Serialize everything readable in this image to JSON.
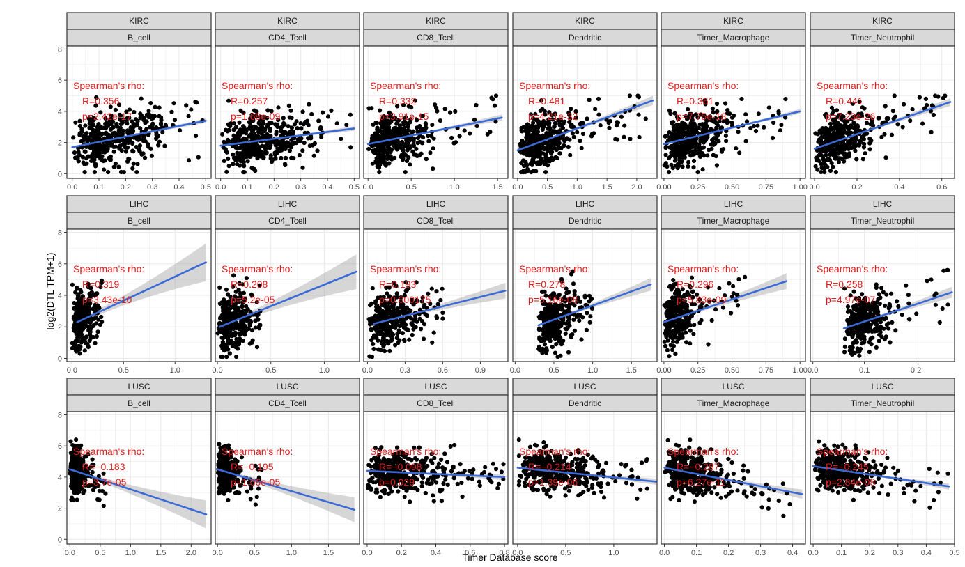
{
  "chart_data": {
    "type": "scatter",
    "xlabel": "Timer Database score",
    "ylabel": "log2(DTL TPM+1)",
    "stat_title": "Spearman's rho:",
    "cell_types": [
      "B_cell",
      "CD4_Tcell",
      "CD8_Tcell",
      "Dendritic",
      "Timer_Macrophage",
      "Timer_Neutrophil"
    ],
    "y_ticks": [
      [
        "0",
        "2",
        "4",
        "6",
        "8"
      ],
      [
        "0",
        "2",
        "4",
        "6",
        "8"
      ],
      [
        "0",
        "2",
        "4",
        "6",
        "8"
      ]
    ],
    "rows": [
      {
        "cancer": "KIRC",
        "panels": [
          {
            "cell": "B_cell",
            "R": "R=0.356",
            "p": "p=2.42e-17",
            "x_ticks": [
              "0.0",
              "0.1",
              "0.2",
              "0.3",
              "0.4",
              "0.5"
            ],
            "xlim": [
              -0.02,
              0.52
            ],
            "ylim": [
              -0.3,
              8.2
            ],
            "fit": [
              [
                0.0,
                1.7
              ],
              [
                0.5,
                3.4
              ]
            ],
            "band": 0.15,
            "ypts": {
              "center": 2.0,
              "spread": 1.1,
              "min": 0.1,
              "max": 5.3
            },
            "xpts": {
              "max": 0.5,
              "peak": 0.15
            },
            "n": 420
          },
          {
            "cell": "CD4_Tcell",
            "R": "R=0.257",
            "p": "p=1.68e-09",
            "x_ticks": [
              "0.0",
              "0.1",
              "0.2",
              "0.3",
              "0.4",
              "0.5"
            ],
            "xlim": [
              -0.02,
              0.52
            ],
            "ylim": [
              -0.3,
              8.2
            ],
            "fit": [
              [
                0.0,
                1.8
              ],
              [
                0.5,
                2.9
              ]
            ],
            "band": 0.15,
            "ypts": {
              "center": 2.0,
              "spread": 1.0,
              "min": 0.1,
              "max": 5.0
            },
            "xpts": {
              "max": 0.5,
              "peak": 0.15
            },
            "n": 420
          },
          {
            "cell": "CD8_Tcell",
            "R": "R=0.332",
            "p": "p=3.91e-15",
            "x_ticks": [
              "0.0",
              "0.5",
              "1.0",
              "1.5"
            ],
            "xlim": [
              -0.05,
              1.62
            ],
            "ylim": [
              -0.3,
              8.2
            ],
            "fit": [
              [
                0.0,
                1.9
              ],
              [
                1.55,
                3.6
              ]
            ],
            "band": 0.2,
            "ypts": {
              "center": 2.0,
              "spread": 1.0,
              "min": 0.1,
              "max": 5.0
            },
            "xpts": {
              "max": 1.55,
              "peak": 0.3
            },
            "n": 420
          },
          {
            "cell": "Dendritic",
            "R": "R=0.481",
            "p": "p=4.21e-32",
            "x_ticks": [
              "0.0",
              "0.5",
              "1.0",
              "1.5",
              "2.0"
            ],
            "xlim": [
              -0.08,
              2.34
            ],
            "ylim": [
              -0.3,
              8.2
            ],
            "fit": [
              [
                0.0,
                1.5
              ],
              [
                2.27,
                4.7
              ]
            ],
            "band": 0.3,
            "ypts": {
              "center": 2.0,
              "spread": 1.0,
              "min": 0.1,
              "max": 5.0
            },
            "xpts": {
              "max": 2.2,
              "peak": 0.4
            },
            "n": 420
          },
          {
            "cell": "Timer_Macrophage",
            "R": "R=0.361",
            "p": "p=7.75e-18",
            "x_ticks": [
              "0.00",
              "0.25",
              "0.50",
              "0.75",
              "1.00"
            ],
            "xlim": [
              -0.02,
              1.04
            ],
            "ylim": [
              -0.3,
              8.2
            ],
            "fit": [
              [
                0.0,
                1.9
              ],
              [
                1.0,
                4.0
              ]
            ],
            "band": 0.15,
            "ypts": {
              "center": 2.0,
              "spread": 1.0,
              "min": 0.1,
              "max": 4.8
            },
            "xpts": {
              "max": 0.9,
              "peak": 0.2
            },
            "n": 420
          },
          {
            "cell": "Timer_Neutrophil",
            "R": "R=0.441",
            "p": "p=7.23e-26",
            "x_ticks": [
              "0.0",
              "0.2",
              "0.4",
              "0.6"
            ],
            "xlim": [
              -0.02,
              0.66
            ],
            "ylim": [
              -0.3,
              8.2
            ],
            "fit": [
              [
                0.0,
                1.6
              ],
              [
                0.64,
                4.6
              ]
            ],
            "band": 0.25,
            "ypts": {
              "center": 2.0,
              "spread": 1.0,
              "min": 0.1,
              "max": 5.0
            },
            "xpts": {
              "max": 0.62,
              "peak": 0.12
            },
            "n": 420
          }
        ]
      },
      {
        "cancer": "LIHC",
        "panels": [
          {
            "cell": "B_cell",
            "R": "R=0.319",
            "p": "p=3.43e-10",
            "x_ticks": [
              "0.0",
              "0.5",
              "1.0"
            ],
            "xlim": [
              -0.05,
              1.35
            ],
            "ylim": [
              -0.2,
              8.2
            ],
            "fit": [
              [
                0.05,
                2.3
              ],
              [
                1.3,
                6.1
              ]
            ],
            "band": 1.2,
            "ypts": {
              "center": 2.5,
              "spread": 1.1,
              "min": 0.1,
              "max": 5.8
            },
            "xpts": {
              "max": 0.3,
              "peak": 0.1
            },
            "n": 330
          },
          {
            "cell": "CD4_Tcell",
            "R": "R=0.208",
            "p": "p=5.2e-05",
            "x_ticks": [
              "0.0",
              "0.5",
              "1.0"
            ],
            "xlim": [
              -0.02,
              1.33
            ],
            "ylim": [
              -0.2,
              8.2
            ],
            "fit": [
              [
                0.02,
                2.0
              ],
              [
                1.3,
                5.5
              ]
            ],
            "band": 1.1,
            "ypts": {
              "center": 2.5,
              "spread": 1.1,
              "min": 0.1,
              "max": 5.8
            },
            "xpts": {
              "max": 0.4,
              "peak": 0.15
            },
            "n": 330
          },
          {
            "cell": "CD8_Tcell",
            "R": "R=0.193",
            "p": "p=0.000175",
            "x_ticks": [
              "0.0",
              "0.3",
              "0.6",
              "0.9"
            ],
            "xlim": [
              -0.03,
              1.12
            ],
            "ylim": [
              -0.2,
              8.2
            ],
            "fit": [
              [
                0.05,
                2.2
              ],
              [
                1.1,
                4.3
              ]
            ],
            "band": 0.5,
            "ypts": {
              "center": 2.5,
              "spread": 1.1,
              "min": 0.1,
              "max": 5.8
            },
            "xpts": {
              "max": 0.6,
              "peak": 0.2
            },
            "n": 330
          },
          {
            "cell": "Dendritic",
            "R": "R=0.278",
            "p": "p=5.16e-08",
            "x_ticks": [
              "0.0",
              "0.5",
              "1.0",
              "1.5"
            ],
            "xlim": [
              -0.03,
              1.83
            ],
            "ylim": [
              -0.2,
              8.2
            ],
            "fit": [
              [
                0.3,
                2.1
              ],
              [
                1.75,
                4.7
              ]
            ],
            "band": 0.4,
            "ypts": {
              "center": 2.5,
              "spread": 1.1,
              "min": 0.1,
              "max": 5.8
            },
            "xpts": {
              "max": 1.0,
              "peak": 0.5
            },
            "xmin": 0.3,
            "n": 330
          },
          {
            "cell": "Timer_Macrophage",
            "R": "R=0.296",
            "p": "p=5.83e-09",
            "x_ticks": [
              "0.00",
              "0.25",
              "0.50",
              "0.75",
              "1.00"
            ],
            "xlim": [
              -0.02,
              1.04
            ],
            "ylim": [
              -0.2,
              8.2
            ],
            "fit": [
              [
                0.0,
                2.3
              ],
              [
                0.9,
                4.9
              ]
            ],
            "band": 0.5,
            "ypts": {
              "center": 2.5,
              "spread": 1.1,
              "min": 0.1,
              "max": 5.8
            },
            "xpts": {
              "max": 0.6,
              "peak": 0.1
            },
            "n": 330
          },
          {
            "cell": "Timer_Neutrophil",
            "R": "R=0.258",
            "p": "p=4.97e-07",
            "x_ticks": [
              "0.0",
              "0.1",
              "0.2"
            ],
            "xlim": [
              -0.005,
              0.275
            ],
            "ylim": [
              -0.2,
              8.2
            ],
            "fit": [
              [
                0.06,
                1.9
              ],
              [
                0.27,
                4.2
              ]
            ],
            "band": 0.35,
            "ypts": {
              "center": 2.5,
              "spread": 1.1,
              "min": 0.1,
              "max": 5.6
            },
            "xpts": {
              "max": 0.27,
              "peak": 0.1
            },
            "xmin": 0.06,
            "n": 330
          }
        ]
      },
      {
        "cancer": "LUSC",
        "panels": [
          {
            "cell": "B_cell",
            "R": "R=−0.183",
            "p": "p=3.7e-05",
            "x_ticks": [
              "0.0",
              "0.5",
              "1.0",
              "1.5",
              "2.0"
            ],
            "xlim": [
              -0.05,
              2.33
            ],
            "ylim": [
              -0.3,
              8.2
            ],
            "fit": [
              [
                0.0,
                4.5
              ],
              [
                2.25,
                1.6
              ]
            ],
            "band": 0.9,
            "ypts": {
              "center": 4.5,
              "spread": 0.8,
              "min": 0.8,
              "max": 6.4
            },
            "xpts": {
              "max": 0.6,
              "peak": 0.1
            },
            "n": 420
          },
          {
            "cell": "CD4_Tcell",
            "R": "R=−0.195",
            "p": "p=1.06e-05",
            "x_ticks": [
              "0.0",
              "0.5",
              "1.0",
              "1.5"
            ],
            "xlim": [
              -0.03,
              1.92
            ],
            "ylim": [
              -0.3,
              8.2
            ],
            "fit": [
              [
                0.0,
                4.5
              ],
              [
                1.85,
                1.9
              ]
            ],
            "band": 0.8,
            "ypts": {
              "center": 4.5,
              "spread": 0.8,
              "min": 0.8,
              "max": 6.4
            },
            "xpts": {
              "max": 0.6,
              "peak": 0.1
            },
            "n": 420
          },
          {
            "cell": "CD8_Tcell",
            "R": "R=−0.098",
            "p": "p=0.029",
            "x_ticks": [
              "0.0",
              "0.2",
              "0.4",
              "0.6",
              "0.8"
            ],
            "xlim": [
              -0.02,
              0.82
            ],
            "ylim": [
              -0.3,
              8.2
            ],
            "fit": [
              [
                0.0,
                4.4
              ],
              [
                0.8,
                4.0
              ]
            ],
            "band": 0.2,
            "ypts": {
              "center": 4.4,
              "spread": 0.8,
              "min": 0.8,
              "max": 6.4
            },
            "xpts": {
              "max": 0.8,
              "peak": 0.2
            },
            "n": 420
          },
          {
            "cell": "Dendritic",
            "R": "R=−0.214",
            "p": "p=1.39e-06",
            "x_ticks": [
              "0.0",
              "0.5",
              "1.0"
            ],
            "xlim": [
              -0.05,
              1.45
            ],
            "ylim": [
              -0.3,
              8.2
            ],
            "fit": [
              [
                0.0,
                4.6
              ],
              [
                1.45,
                3.7
              ]
            ],
            "band": 0.2,
            "ypts": {
              "center": 4.3,
              "spread": 0.8,
              "min": 0.8,
              "max": 6.4
            },
            "xpts": {
              "max": 1.4,
              "peak": 0.4
            },
            "n": 420
          },
          {
            "cell": "Timer_Macrophage",
            "R": "R=−0.287",
            "p": "p=6.27e-11",
            "x_ticks": [
              "0.0",
              "0.1",
              "0.2",
              "0.3",
              "0.4"
            ],
            "xlim": [
              -0.01,
              0.44
            ],
            "ylim": [
              -0.3,
              8.2
            ],
            "fit": [
              [
                0.0,
                4.6
              ],
              [
                0.43,
                2.9
              ]
            ],
            "band": 0.3,
            "ypts": {
              "center": 4.3,
              "spread": 0.8,
              "min": 0.8,
              "max": 6.4
            },
            "xpts": {
              "max": 0.4,
              "peak": 0.08
            },
            "n": 420
          },
          {
            "cell": "Timer_Neutrophil",
            "R": "R=−0.245",
            "p": "p=2.84e-08",
            "x_ticks": [
              "0.0",
              "0.1",
              "0.2",
              "0.3",
              "0.4",
              "0.5"
            ],
            "xlim": [
              -0.01,
              0.5
            ],
            "ylim": [
              -0.3,
              8.2
            ],
            "fit": [
              [
                0.0,
                4.7
              ],
              [
                0.48,
                3.4
              ]
            ],
            "band": 0.2,
            "ypts": {
              "center": 4.4,
              "spread": 0.8,
              "min": 0.8,
              "max": 6.4
            },
            "xpts": {
              "max": 0.48,
              "peak": 0.1
            },
            "n": 420
          }
        ]
      }
    ]
  },
  "colors": {
    "strip_fill": "#d9d9d9",
    "strip_border": "#333333",
    "panel_border": "#333333",
    "grid": "#ebebeb",
    "point": "#000000",
    "fit_line": "#3a6ad6",
    "band": "#999999",
    "annotation": "#e21a1a"
  }
}
